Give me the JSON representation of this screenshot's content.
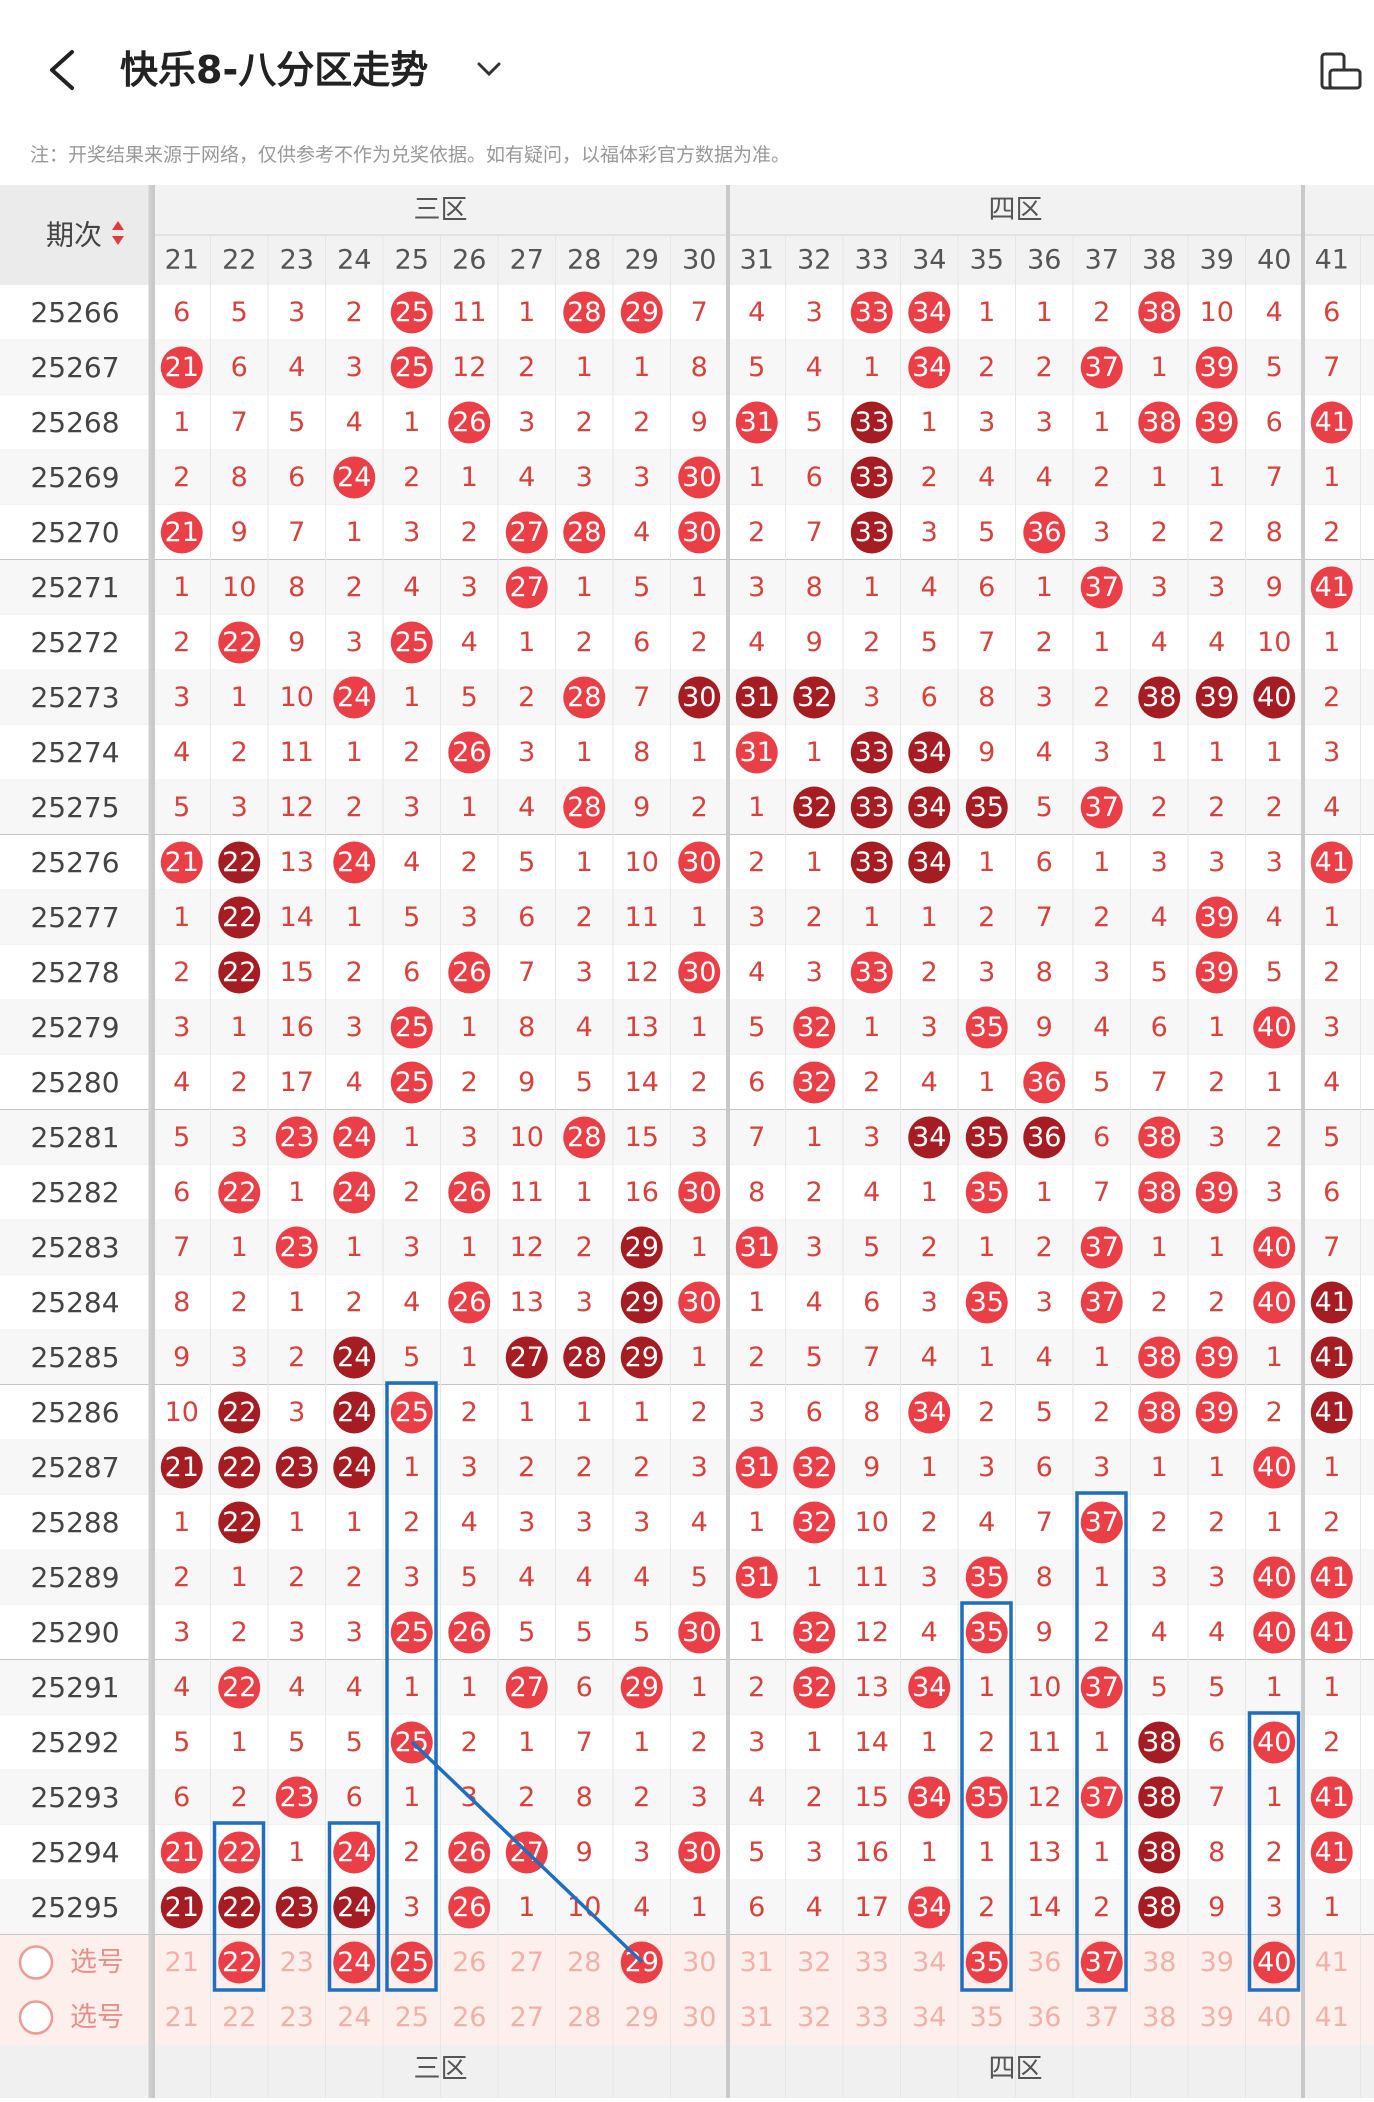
{
  "header": {
    "title": "快乐8-八分区走势"
  },
  "note": "注：开奖结果来源于网络，仅供参考不作为兑奖依据。如有疑问，以福体彩官方数据为准。",
  "table": {
    "period_label": "期次",
    "zones": [
      {
        "name": "三区"
      },
      {
        "name": "四区"
      }
    ],
    "columns": [
      21,
      22,
      23,
      24,
      25,
      26,
      27,
      28,
      29,
      30,
      31,
      32,
      33,
      34,
      35,
      36,
      37,
      38,
      39,
      40,
      41
    ],
    "rows": [
      {
        "period": "25266",
        "cells": [
          6,
          5,
          3,
          2,
          25,
          11,
          1,
          28,
          29,
          7,
          4,
          3,
          33,
          34,
          1,
          1,
          2,
          38,
          10,
          4,
          6
        ],
        "dark": []
      },
      {
        "period": "25267",
        "cells": [
          21,
          6,
          4,
          3,
          25,
          12,
          2,
          1,
          1,
          8,
          5,
          4,
          1,
          34,
          2,
          2,
          37,
          1,
          39,
          5,
          7
        ],
        "dark": []
      },
      {
        "period": "25268",
        "cells": [
          1,
          7,
          5,
          4,
          1,
          26,
          3,
          2,
          2,
          9,
          31,
          5,
          33,
          1,
          3,
          3,
          1,
          38,
          39,
          6,
          41
        ],
        "dark": [
          33
        ]
      },
      {
        "period": "25269",
        "cells": [
          2,
          8,
          6,
          24,
          2,
          1,
          4,
          3,
          3,
          30,
          1,
          6,
          33,
          2,
          4,
          4,
          2,
          1,
          1,
          7,
          1
        ],
        "dark": [
          33
        ]
      },
      {
        "period": "25270",
        "cells": [
          21,
          9,
          7,
          1,
          3,
          2,
          27,
          28,
          4,
          30,
          2,
          7,
          33,
          3,
          5,
          36,
          3,
          2,
          2,
          8,
          2
        ],
        "dark": [
          33
        ]
      },
      {
        "period": "25271",
        "cells": [
          1,
          10,
          8,
          2,
          4,
          3,
          27,
          1,
          5,
          1,
          3,
          8,
          1,
          4,
          6,
          1,
          37,
          3,
          3,
          9,
          41
        ],
        "dark": []
      },
      {
        "period": "25272",
        "cells": [
          2,
          22,
          9,
          3,
          25,
          4,
          1,
          2,
          6,
          2,
          4,
          9,
          2,
          5,
          7,
          2,
          1,
          4,
          4,
          10,
          1
        ],
        "dark": []
      },
      {
        "period": "25273",
        "cells": [
          3,
          1,
          10,
          24,
          1,
          5,
          2,
          28,
          7,
          30,
          31,
          32,
          3,
          6,
          8,
          3,
          2,
          38,
          39,
          40,
          2
        ],
        "dark": [
          30,
          31,
          32,
          38,
          39,
          40
        ]
      },
      {
        "period": "25274",
        "cells": [
          4,
          2,
          11,
          1,
          2,
          26,
          3,
          1,
          8,
          1,
          31,
          1,
          33,
          34,
          9,
          4,
          3,
          1,
          1,
          1,
          3
        ],
        "dark": [
          33,
          34
        ]
      },
      {
        "period": "25275",
        "cells": [
          5,
          3,
          12,
          2,
          3,
          1,
          4,
          28,
          9,
          2,
          1,
          32,
          33,
          34,
          35,
          5,
          37,
          2,
          2,
          2,
          4
        ],
        "dark": [
          32,
          33,
          34,
          35
        ]
      },
      {
        "period": "25276",
        "cells": [
          21,
          22,
          13,
          24,
          4,
          2,
          5,
          1,
          10,
          30,
          2,
          1,
          33,
          34,
          1,
          6,
          1,
          3,
          3,
          3,
          41
        ],
        "dark": [
          22,
          33,
          34
        ]
      },
      {
        "period": "25277",
        "cells": [
          1,
          22,
          14,
          1,
          5,
          3,
          6,
          2,
          11,
          1,
          3,
          2,
          1,
          1,
          2,
          7,
          2,
          4,
          39,
          4,
          1
        ],
        "dark": [
          22
        ]
      },
      {
        "period": "25278",
        "cells": [
          2,
          22,
          15,
          2,
          6,
          26,
          7,
          3,
          12,
          30,
          4,
          3,
          33,
          2,
          3,
          8,
          3,
          5,
          39,
          5,
          2
        ],
        "dark": [
          22
        ]
      },
      {
        "period": "25279",
        "cells": [
          3,
          1,
          16,
          3,
          25,
          1,
          8,
          4,
          13,
          1,
          5,
          32,
          1,
          3,
          35,
          9,
          4,
          6,
          1,
          40,
          3
        ],
        "dark": []
      },
      {
        "period": "25280",
        "cells": [
          4,
          2,
          17,
          4,
          25,
          2,
          9,
          5,
          14,
          2,
          6,
          32,
          2,
          4,
          1,
          36,
          5,
          7,
          2,
          1,
          4
        ],
        "dark": []
      },
      {
        "period": "25281",
        "cells": [
          5,
          3,
          23,
          24,
          1,
          3,
          10,
          28,
          15,
          3,
          7,
          1,
          3,
          34,
          35,
          36,
          6,
          38,
          3,
          2,
          5
        ],
        "dark": [
          34,
          35,
          36
        ]
      },
      {
        "period": "25282",
        "cells": [
          6,
          22,
          1,
          24,
          2,
          26,
          11,
          1,
          16,
          30,
          8,
          2,
          4,
          1,
          35,
          1,
          7,
          38,
          39,
          3,
          6
        ],
        "dark": []
      },
      {
        "period": "25283",
        "cells": [
          7,
          1,
          23,
          1,
          3,
          1,
          12,
          2,
          29,
          1,
          31,
          3,
          5,
          2,
          1,
          2,
          37,
          1,
          1,
          40,
          7
        ],
        "dark": [
          29
        ]
      },
      {
        "period": "25284",
        "cells": [
          8,
          2,
          1,
          2,
          4,
          26,
          13,
          3,
          29,
          30,
          1,
          4,
          6,
          3,
          35,
          3,
          37,
          2,
          2,
          40,
          41
        ],
        "dark": [
          29,
          41
        ]
      },
      {
        "period": "25285",
        "cells": [
          9,
          3,
          2,
          24,
          5,
          1,
          27,
          28,
          29,
          1,
          2,
          5,
          7,
          4,
          1,
          4,
          1,
          38,
          39,
          1,
          41
        ],
        "dark": [
          24,
          27,
          28,
          29,
          41
        ]
      },
      {
        "period": "25286",
        "cells": [
          10,
          22,
          3,
          24,
          25,
          2,
          1,
          1,
          1,
          2,
          3,
          6,
          8,
          34,
          2,
          5,
          2,
          38,
          39,
          2,
          41
        ],
        "dark": [
          22,
          24,
          41
        ]
      },
      {
        "period": "25287",
        "cells": [
          21,
          22,
          23,
          24,
          1,
          3,
          2,
          2,
          2,
          3,
          31,
          32,
          9,
          1,
          3,
          6,
          3,
          1,
          1,
          40,
          1
        ],
        "dark": [
          21,
          22,
          23,
          24
        ]
      },
      {
        "period": "25288",
        "cells": [
          1,
          22,
          1,
          1,
          2,
          4,
          3,
          3,
          3,
          4,
          1,
          32,
          10,
          2,
          4,
          7,
          37,
          2,
          2,
          1,
          2
        ],
        "dark": [
          22
        ]
      },
      {
        "period": "25289",
        "cells": [
          2,
          1,
          2,
          2,
          3,
          5,
          4,
          4,
          4,
          5,
          31,
          1,
          11,
          3,
          35,
          8,
          1,
          3,
          3,
          40,
          41
        ],
        "dark": []
      },
      {
        "period": "25290",
        "cells": [
          3,
          2,
          3,
          3,
          25,
          26,
          5,
          5,
          5,
          30,
          1,
          32,
          12,
          4,
          35,
          9,
          2,
          4,
          4,
          40,
          41
        ],
        "dark": []
      },
      {
        "period": "25291",
        "cells": [
          4,
          22,
          4,
          4,
          1,
          1,
          27,
          6,
          29,
          1,
          2,
          32,
          13,
          34,
          1,
          10,
          37,
          5,
          5,
          1,
          1
        ],
        "dark": []
      },
      {
        "period": "25292",
        "cells": [
          5,
          1,
          5,
          5,
          25,
          2,
          1,
          7,
          1,
          2,
          3,
          1,
          14,
          1,
          2,
          11,
          1,
          38,
          6,
          40,
          2
        ],
        "dark": [
          38
        ]
      },
      {
        "period": "25293",
        "cells": [
          6,
          2,
          23,
          6,
          1,
          3,
          2,
          8,
          2,
          3,
          4,
          2,
          15,
          34,
          35,
          12,
          37,
          38,
          7,
          1,
          41
        ],
        "dark": [
          38
        ]
      },
      {
        "period": "25294",
        "cells": [
          21,
          22,
          1,
          24,
          2,
          26,
          27,
          9,
          3,
          30,
          5,
          3,
          16,
          1,
          1,
          13,
          1,
          38,
          8,
          2,
          41
        ],
        "dark": [
          38
        ]
      },
      {
        "period": "25295",
        "cells": [
          21,
          22,
          23,
          24,
          3,
          26,
          1,
          10,
          4,
          1,
          6,
          4,
          17,
          34,
          2,
          14,
          2,
          38,
          9,
          3,
          1
        ],
        "dark": [
          21,
          22,
          23,
          24,
          38
        ]
      }
    ],
    "select_label": "选号",
    "selected": [
      22,
      24,
      25,
      29,
      35,
      37,
      40
    ]
  }
}
